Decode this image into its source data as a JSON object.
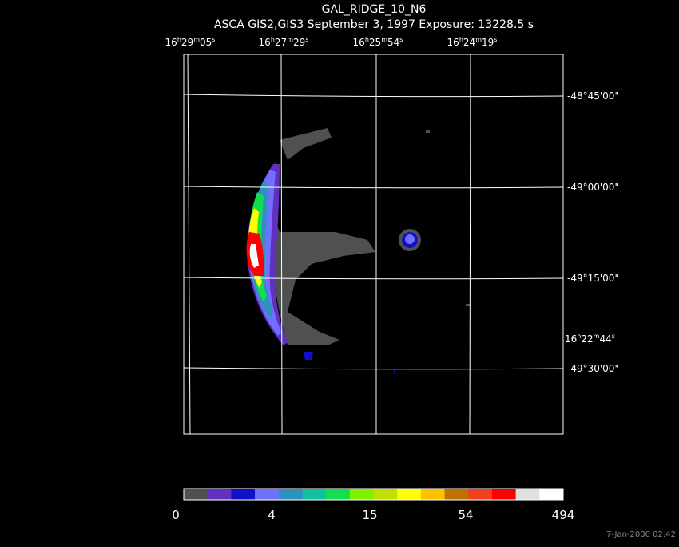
{
  "title": "GAL_RIDGE_10_N6",
  "subtitle": "ASCA GIS2,GIS3 September 3, 1997 Exposure: 13228.5 s",
  "ra_labels": [
    {
      "parts": [
        "16",
        "h",
        "29",
        "m",
        "05",
        "s"
      ]
    },
    {
      "parts": [
        "16",
        "h",
        "27",
        "m",
        "29",
        "s"
      ]
    },
    {
      "parts": [
        "16",
        "h",
        "25",
        "m",
        "54",
        "s"
      ]
    },
    {
      "parts": [
        "16",
        "h",
        "24",
        "m",
        "19",
        "s"
      ]
    },
    {
      "parts": [
        "16",
        "h",
        "22",
        "m",
        "44",
        "s"
      ]
    }
  ],
  "dec_labels": [
    "-48°45'00\"",
    "-49°00'00\"",
    "-49°15'00\"",
    "-49°30'00\""
  ],
  "colorbar": {
    "colors": [
      "#505050",
      "#6030c0",
      "#1010c8",
      "#7070ff",
      "#3090c0",
      "#10c0a0",
      "#10e050",
      "#80f000",
      "#c0e000",
      "#ffff00",
      "#ffc000",
      "#c07000",
      "#f04020",
      "#ff0000",
      "#e0e0e0",
      "#ffffff"
    ],
    "labels": [
      0,
      4,
      15,
      54,
      494
    ]
  },
  "timestamp": "7-Jan-2000 02:42"
}
